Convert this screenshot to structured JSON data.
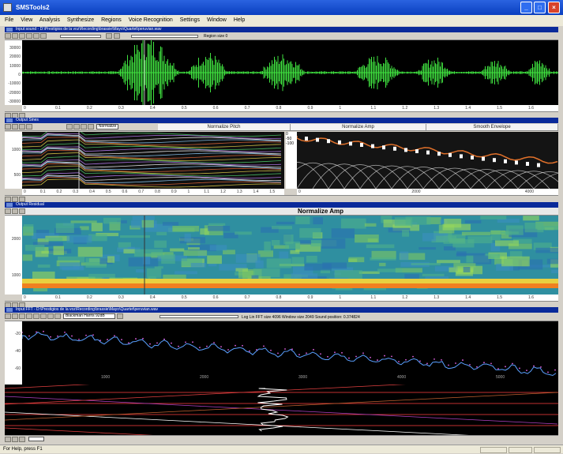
{
  "window": {
    "title": "SMSTools2"
  },
  "menu": [
    "File",
    "View",
    "Analysis",
    "Synthesize",
    "Regions",
    "Voice Recognition",
    "Settings",
    "Window",
    "Help"
  ],
  "input_pane": {
    "title": "Input sound - D:\\Prestigios de la voz\\Recording\\brassie\\Mayo\\Quartet\\peruvian.wav",
    "region_label": "Region size 0",
    "y_ticks": [
      "30000",
      "20000",
      "10000",
      "0",
      "-10000",
      "-20000",
      "-30000"
    ],
    "x_ticks": [
      "0",
      "0.1",
      "0.2",
      "0.3",
      "0.4",
      "0.5",
      "0.6",
      "0.7",
      "0.8",
      "0.9",
      "1",
      "1.1",
      "1.2",
      "1.3",
      "1.4",
      "1.5",
      "1.6"
    ]
  },
  "output_sines": {
    "title": "Output Sines",
    "dropdown": "Normalize",
    "tabs": [
      "Normalize Pitch",
      "Normalize Amp",
      "Smooth Envelope"
    ],
    "y_ticks_left": [
      "1000",
      "500"
    ],
    "x_ticks_left": [
      "0",
      "0.1",
      "0.2",
      "0.3",
      "0.4",
      "0.5",
      "0.6",
      "0.7",
      "0.8",
      "0.9",
      "1",
      "1.1",
      "1.2",
      "1.3",
      "1.4",
      "1.5"
    ],
    "y_ticks_right": [
      "0",
      "-50",
      "-100"
    ],
    "x_ticks_right": [
      "0",
      "2000",
      "4000"
    ]
  },
  "output_residual": {
    "title": "Output Residual",
    "heading": "Normalize Amp",
    "y_ticks": [
      "2000",
      "1000"
    ],
    "x_ticks": [
      "0",
      "0.1",
      "0.2",
      "0.3",
      "0.4",
      "0.5",
      "0.6",
      "0.7",
      "0.8",
      "0.9",
      "1",
      "1.1",
      "1.2",
      "1.3",
      "1.4",
      "1.5",
      "1.6"
    ]
  },
  "fft_pane": {
    "title": "Input FFT - D:\\Prestigios de la voz\\Recording\\brassie\\Mayo\\Quartet\\peruvian.wav",
    "window_select": "Blackman Harris 92dB",
    "info": "Log  Lin  FFT size 4096  Window size 2049  Sound position: 0.374824",
    "y_ticks": [
      "-20",
      "-40",
      "-60"
    ],
    "x_ticks": [
      "1000",
      "2000",
      "3000",
      "4000",
      "5000"
    ]
  },
  "status": {
    "text": "For Help, press F1"
  },
  "colors": {
    "waveform": "#3fe03f",
    "titlebar": "#0a3fc0",
    "pane_title": "#0a2a9a"
  }
}
